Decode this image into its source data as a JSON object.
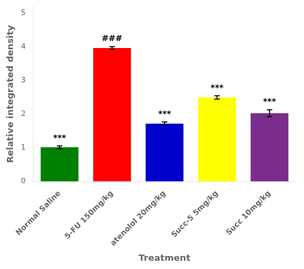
{
  "chart_data": {
    "type": "bar",
    "categories": [
      "Normal Saline",
      "5-FU 150mg/kg",
      "atenolol 20mg/kg",
      "Succ-5 5mg/kg",
      "Succ 10mg/kg"
    ],
    "values": [
      1.02,
      3.97,
      1.72,
      2.5,
      2.03
    ],
    "errors": [
      0.04,
      0.04,
      0.05,
      0.05,
      0.1
    ],
    "colors": [
      "#008000",
      "#ff0000",
      "#0000cc",
      "#ffff00",
      "#7b2d8b"
    ],
    "annotations": [
      "***",
      "###",
      "***",
      "***",
      "***"
    ],
    "xlabel": "Treatment",
    "ylabel": "Relative integrated density",
    "ylim": [
      0,
      5.2
    ],
    "yticks": [
      0,
      1,
      2,
      3,
      4,
      5
    ],
    "grid": false
  }
}
